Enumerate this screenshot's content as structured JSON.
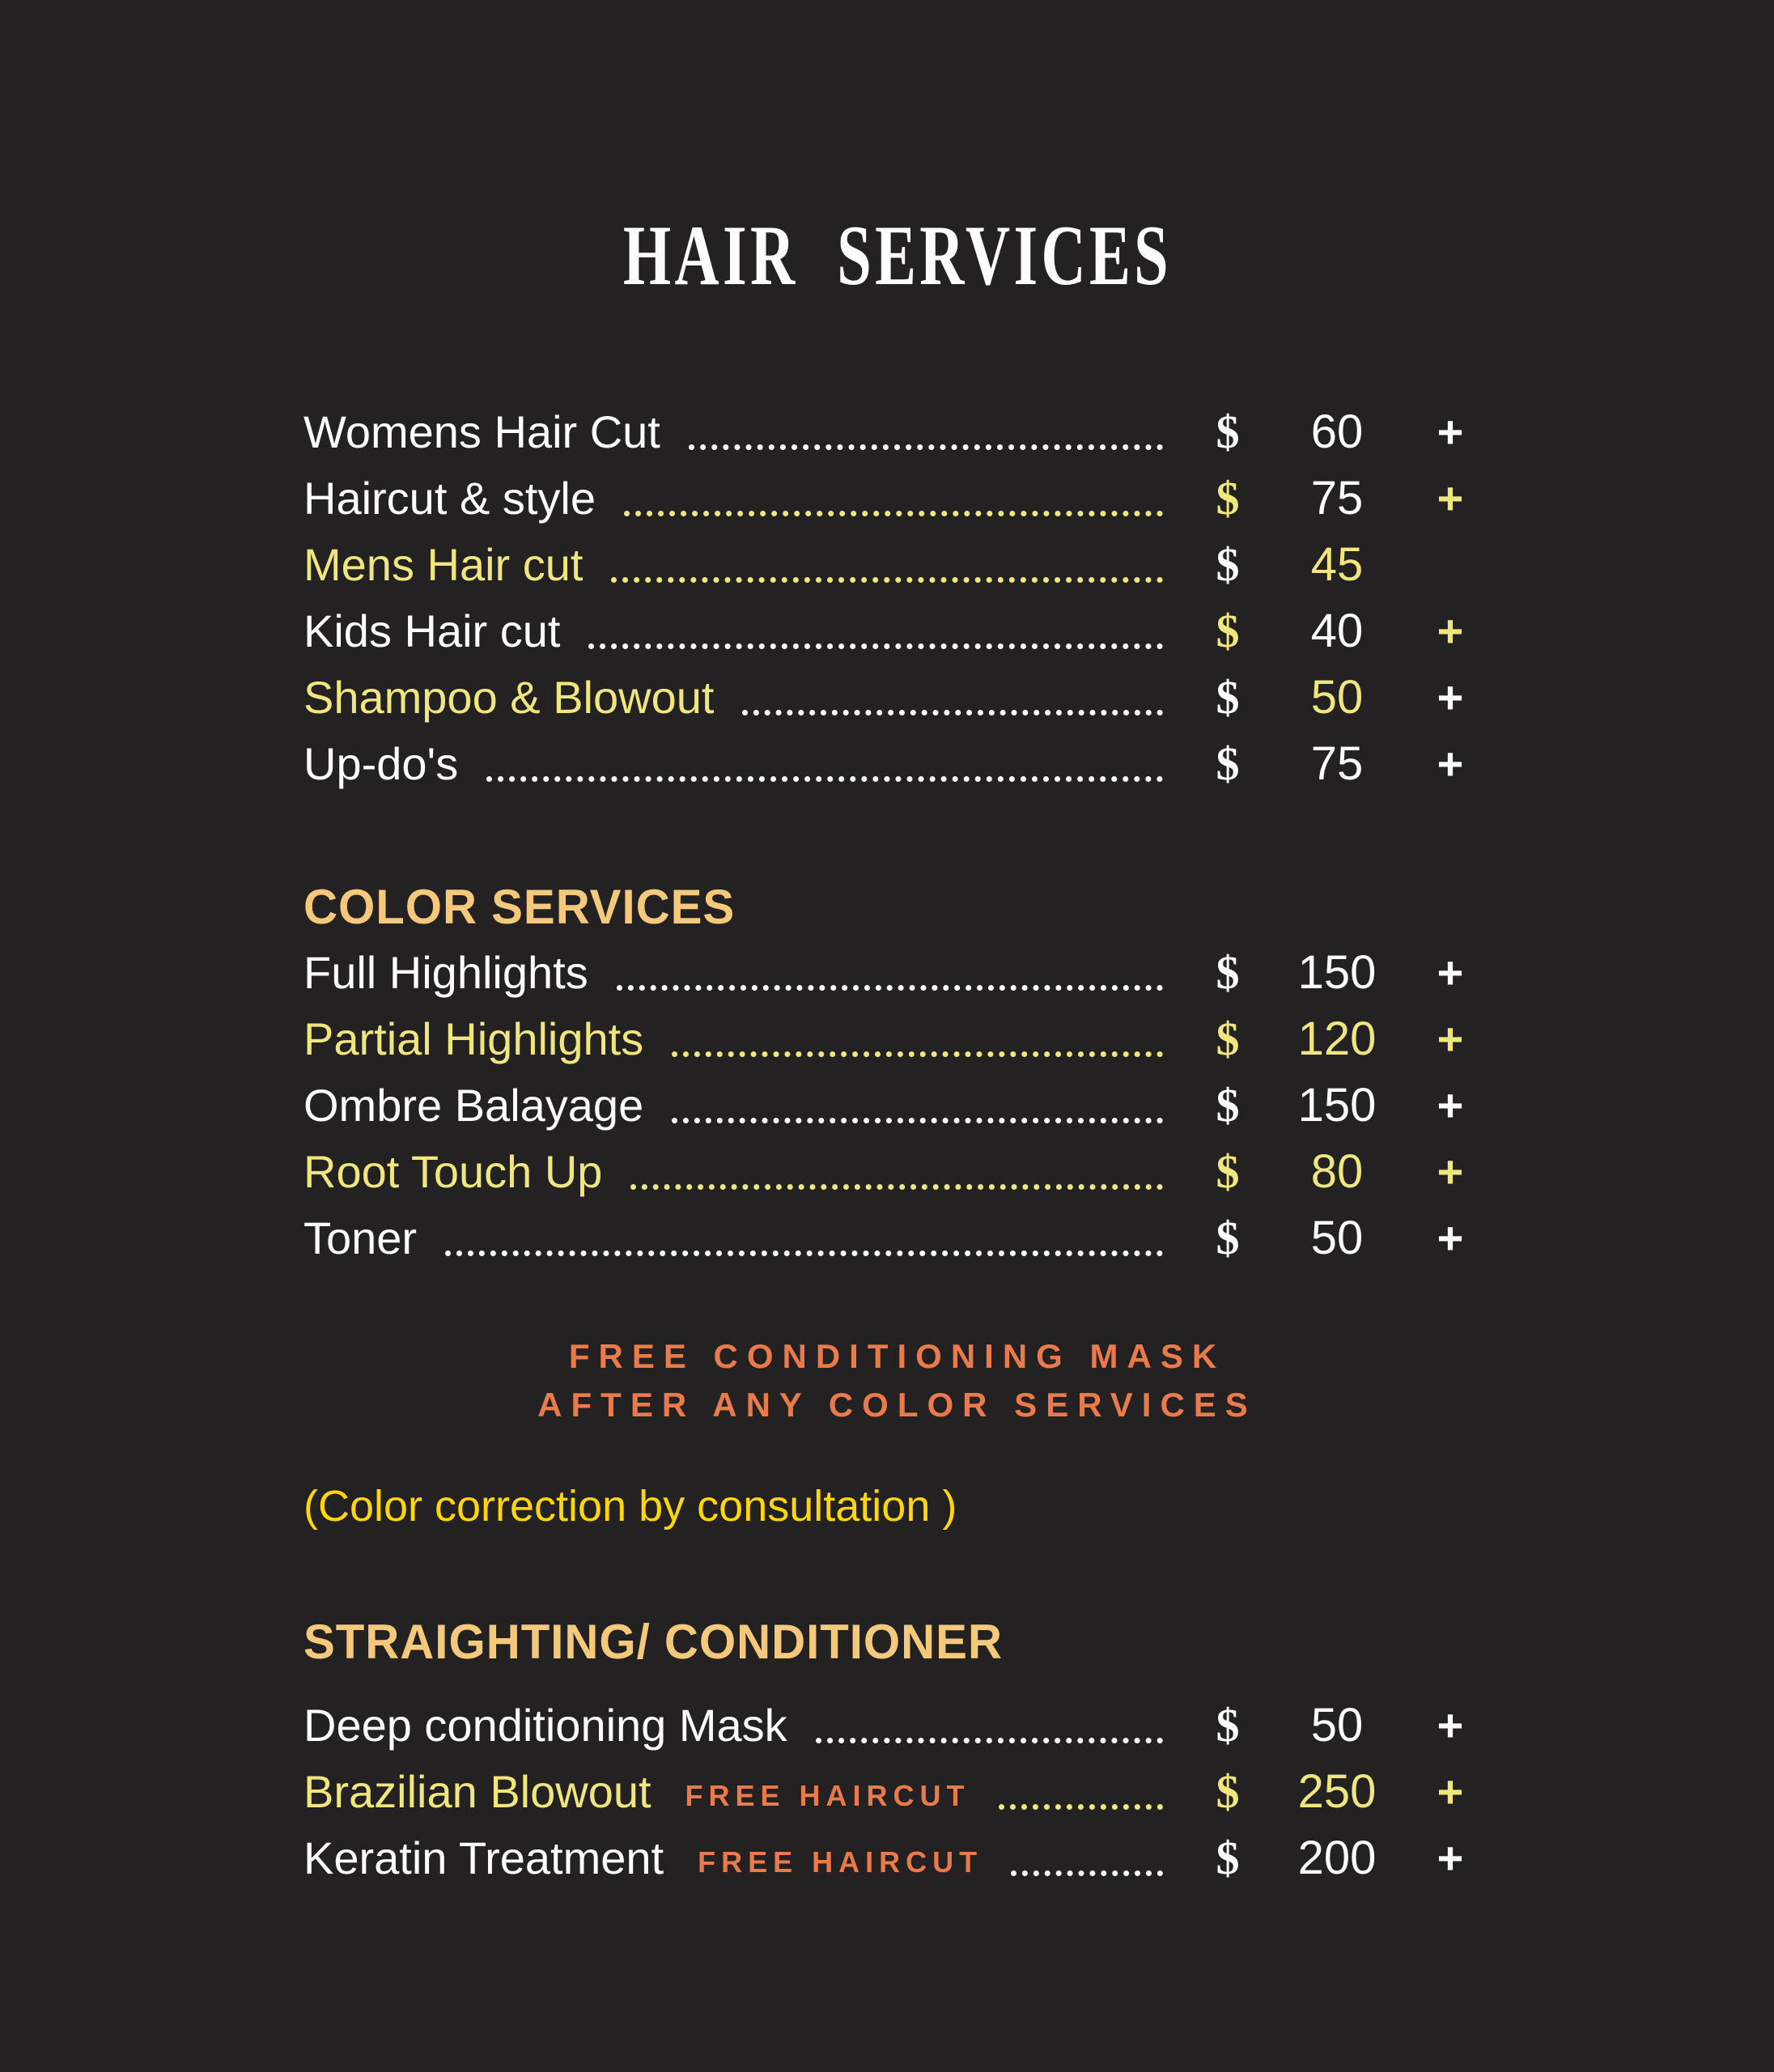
{
  "title": "HAIR SERVICES",
  "currency": "$",
  "plus_glyph": "+",
  "colors": {
    "background": "#232122",
    "white": "#fcfcfc",
    "yellow": "#f0e67f",
    "gold": "#f4c97c",
    "orange": "#e97a4b",
    "bright_yellow": "#ffd60b"
  },
  "blocks": [
    {
      "type": "rows",
      "name": "hair-services-list",
      "items": [
        {
          "label": "Womens Hair Cut",
          "label_color": "white",
          "dots_color": "white",
          "dollar_color": "white",
          "price": "60",
          "price_color": "white",
          "plus_color": "white"
        },
        {
          "label": "Haircut & style",
          "label_color": "white",
          "dots_color": "yellow",
          "dollar_color": "yellow",
          "price": "75",
          "price_color": "white",
          "plus_color": "yellow"
        },
        {
          "label": "Mens Hair cut",
          "label_color": "yellow",
          "dots_color": "yellow",
          "dollar_color": "white",
          "price": "45",
          "price_color": "yellow",
          "plus_color": null
        },
        {
          "label": "Kids Hair cut",
          "label_color": "white",
          "dots_color": "white",
          "dollar_color": "yellow",
          "price": "40",
          "price_color": "white",
          "plus_color": "yellow"
        },
        {
          "label": "Shampoo & Blowout",
          "label_color": "yellow",
          "dots_color": "white",
          "dollar_color": "white",
          "price": "50",
          "price_color": "yellow",
          "plus_color": "white"
        },
        {
          "label": "Up-do's",
          "label_color": "white",
          "dots_color": "white",
          "dollar_color": "white",
          "price": "75",
          "price_color": "white",
          "plus_color": "white"
        }
      ]
    },
    {
      "type": "header",
      "text": "COLOR SERVICES",
      "color": "gold"
    },
    {
      "type": "rows",
      "name": "color-services-list",
      "items": [
        {
          "label": "Full Highlights",
          "label_color": "white",
          "dots_color": "white",
          "dollar_color": "white",
          "price": "150",
          "price_color": "white",
          "plus_color": "white"
        },
        {
          "label": "Partial Highlights",
          "label_color": "yellow",
          "dots_color": "yellow",
          "dollar_color": "yellow",
          "price": "120",
          "price_color": "yellow",
          "plus_color": "yellow"
        },
        {
          "label": "Ombre Balayage",
          "label_color": "white",
          "dots_color": "white",
          "dollar_color": "white",
          "price": "150",
          "price_color": "white",
          "plus_color": "white"
        },
        {
          "label": "Root Touch Up",
          "label_color": "yellow",
          "dots_color": "yellow",
          "dollar_color": "yellow",
          "price": "80",
          "price_color": "yellow",
          "plus_color": "yellow"
        },
        {
          "label": "Toner",
          "label_color": "white",
          "dots_color": "white",
          "dollar_color": "white",
          "price": "50",
          "price_color": "white",
          "plus_color": "white"
        }
      ]
    },
    {
      "type": "note-center",
      "color": "orange",
      "lines": [
        "FREE CONDITIONING MASK",
        "AFTER ANY COLOR SERVICES"
      ]
    },
    {
      "type": "note-left",
      "text": "(Color correction by consultation )",
      "color": "bright_yellow"
    },
    {
      "type": "header",
      "text": "STRAIGHTING/ CONDITIONER",
      "color": "gold"
    },
    {
      "type": "rows",
      "name": "straightening-conditioner-list",
      "items": [
        {
          "label": "Deep conditioning Mask",
          "label_color": "white",
          "dots_color": "white",
          "dollar_color": "white",
          "price": "50",
          "price_color": "white",
          "plus_color": "white"
        },
        {
          "label": "Brazilian Blowout",
          "badge": "FREE HAIRCUT",
          "badge_color": "orange",
          "label_color": "yellow",
          "dots_color": "yellow",
          "dollar_color": "yellow",
          "price": "250",
          "price_color": "yellow",
          "plus_color": "yellow"
        },
        {
          "label": "Keratin Treatment",
          "badge": "FREE HAIRCUT",
          "badge_color": "orange",
          "label_color": "white",
          "dots_color": "white",
          "dollar_color": "white",
          "price": "200",
          "price_color": "white",
          "plus_color": "white"
        }
      ]
    }
  ]
}
